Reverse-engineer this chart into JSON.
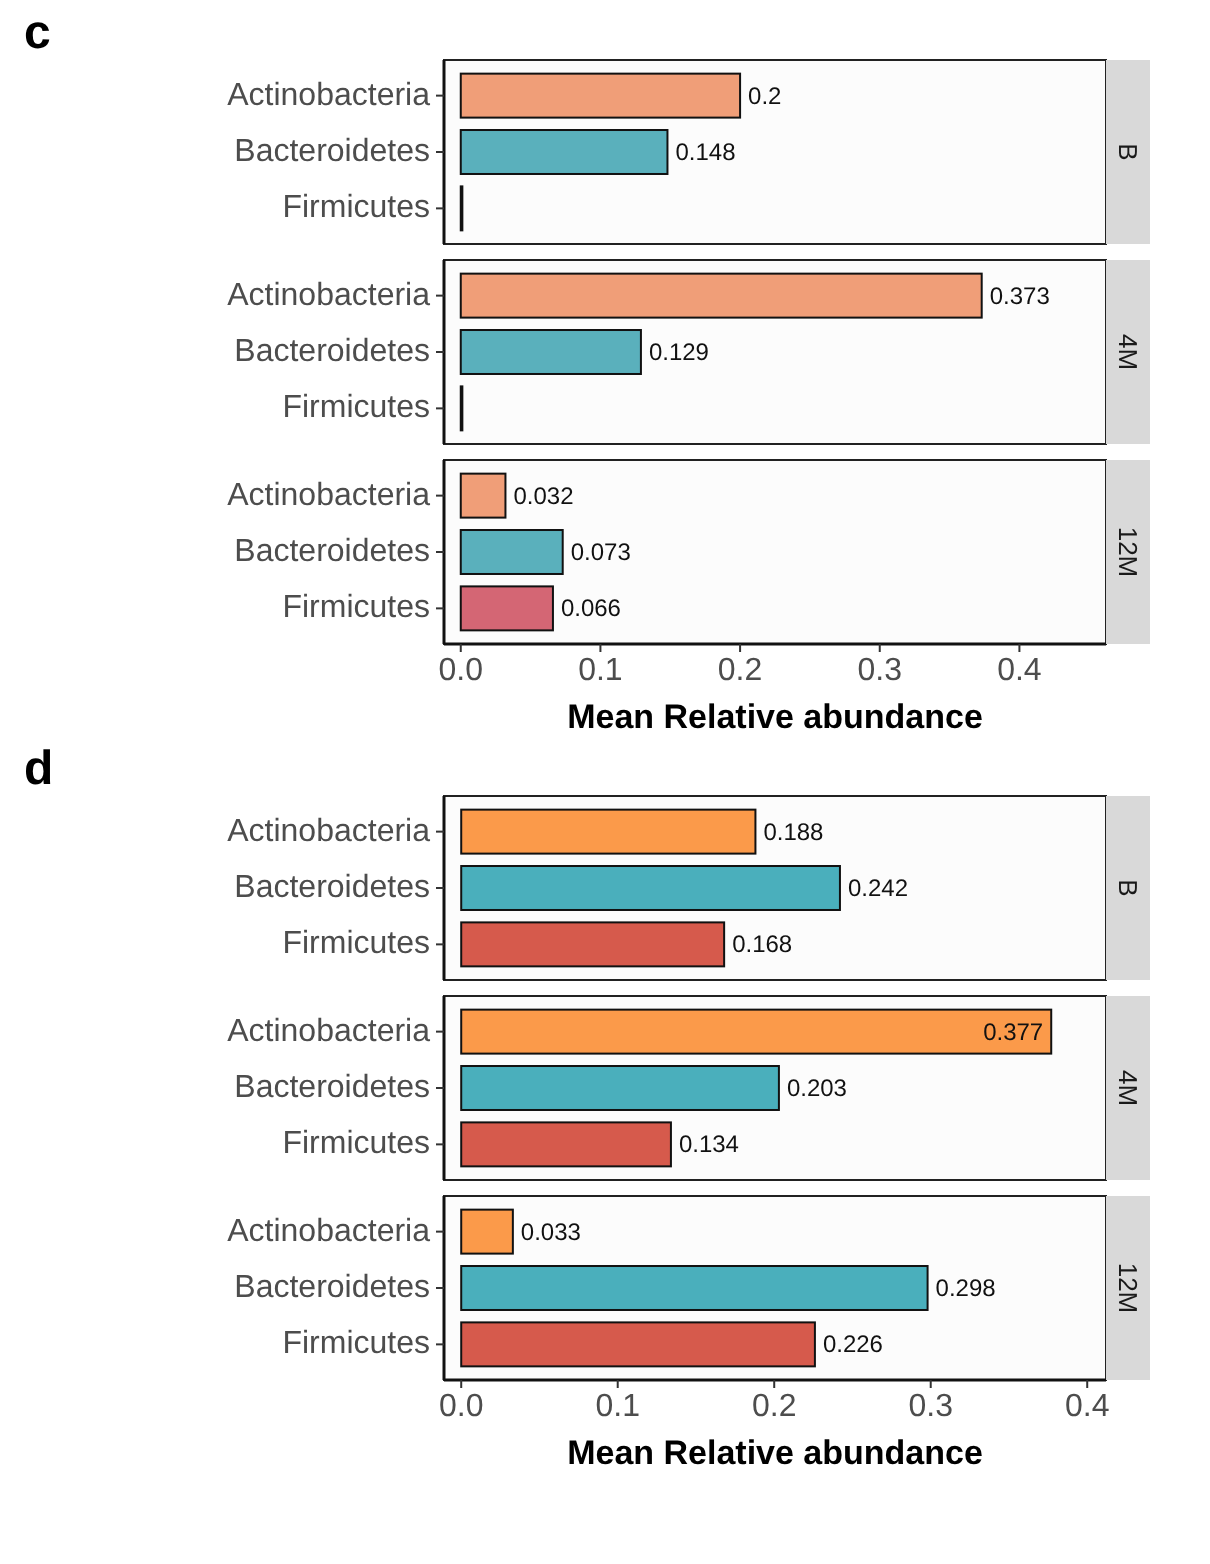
{
  "chart_data": [
    {
      "type": "bar",
      "orientation": "horizontal",
      "title": "B",
      "annotations": [
        "c"
      ],
      "categories": [
        "Actinobacteria",
        "Bacteroidetes",
        "Firmicutes"
      ],
      "values": [
        0.2,
        0.148,
        0.001
      ],
      "colors": [
        "#f09e78",
        "#5ab0bc",
        "#d46674"
      ],
      "value_labels": [
        "0.2",
        "0.148",
        null
      ],
      "xlim": [
        -0.012,
        0.462
      ],
      "tick_labels": "y"
    },
    {
      "type": "bar",
      "orientation": "horizontal",
      "title": "4M",
      "categories": [
        "Actinobacteria",
        "Bacteroidetes",
        "Firmicutes"
      ],
      "values": [
        0.373,
        0.129,
        0.001
      ],
      "colors": [
        "#f09e78",
        "#5ab0bc",
        "#d46674"
      ],
      "value_labels": [
        "0.373",
        "0.129",
        null
      ],
      "xlim": [
        -0.012,
        0.462
      ],
      "tick_labels": "y"
    },
    {
      "type": "bar",
      "orientation": "horizontal",
      "title": "12M",
      "xlabel": "Mean Relative abundance",
      "categories": [
        "Actinobacteria",
        "Bacteroidetes",
        "Firmicutes"
      ],
      "values": [
        0.032,
        0.073,
        0.066
      ],
      "colors": [
        "#f09e78",
        "#5ab0bc",
        "#d46674"
      ],
      "value_labels": [
        "0.032",
        "0.073",
        "0.066"
      ],
      "xlim": [
        -0.012,
        0.462
      ],
      "xticks": [
        {
          "value": 0,
          "label": "0.0"
        },
        0.1,
        0.2,
        0.3,
        0.4
      ]
    },
    {
      "type": "bar",
      "orientation": "horizontal",
      "title": "B",
      "annotations": [
        "d"
      ],
      "categories": [
        "Actinobacteria",
        "Bacteroidetes",
        "Firmicutes"
      ],
      "values": [
        0.188,
        0.242,
        0.168
      ],
      "colors": [
        "#fb9a4a",
        "#4aafbc",
        "#d65a4c"
      ],
      "value_labels": [
        "0.188",
        "0.242",
        "0.168"
      ],
      "xlim": [
        -0.011,
        0.412
      ],
      "tick_labels": "y"
    },
    {
      "type": "bar",
      "orientation": "horizontal",
      "title": "4M",
      "categories": [
        "Actinobacteria",
        "Bacteroidetes",
        "Firmicutes"
      ],
      "values": [
        0.377,
        0.203,
        0.134
      ],
      "colors": [
        "#fb9a4a",
        "#4aafbc",
        "#d65a4c"
      ],
      "value_labels": [
        "0.377",
        "0.203",
        "0.134"
      ],
      "xlim": [
        -0.011,
        0.412
      ],
      "tick_labels": "y"
    },
    {
      "type": "bar",
      "orientation": "horizontal",
      "title": "12M",
      "xlabel": "Mean Relative abundance",
      "categories": [
        "Actinobacteria",
        "Bacteroidetes",
        "Firmicutes"
      ],
      "values": [
        0.033,
        0.298,
        0.226
      ],
      "colors": [
        "#fb9a4a",
        "#4aafbc",
        "#d65a4c"
      ],
      "value_labels": [
        "0.033",
        "0.298",
        "0.226"
      ],
      "xlim": [
        -0.011,
        0.412
      ],
      "xticks": [
        {
          "value": 0,
          "label": "0.0"
        },
        0.1,
        0.2,
        0.3,
        0.4
      ]
    }
  ]
}
